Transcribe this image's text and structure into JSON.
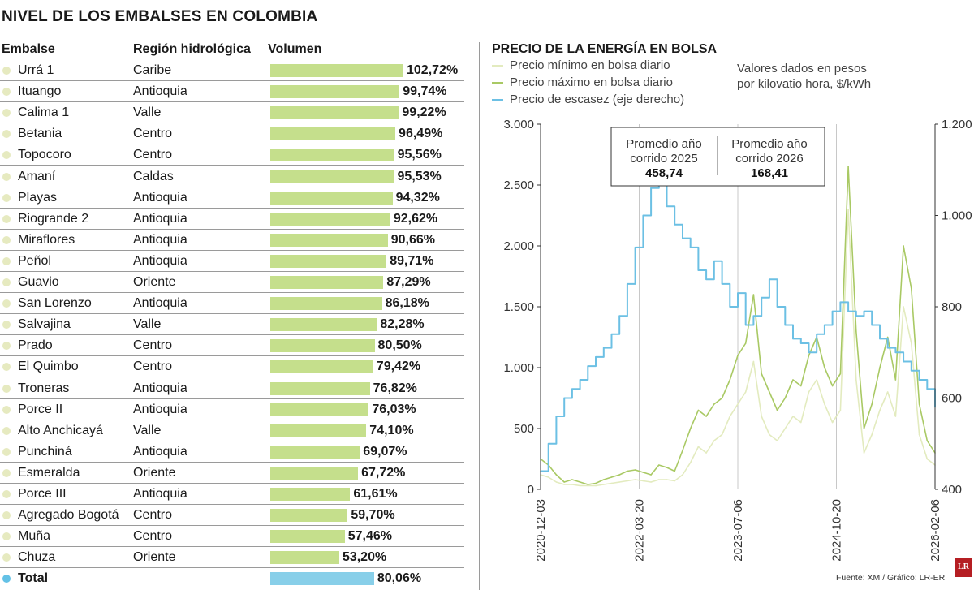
{
  "title": "NIVEL DE LOS EMBALSES EN COLOMBIA",
  "table": {
    "headers": {
      "name": "Embalse",
      "region": "Región hidrológica",
      "volume": "Volumen"
    },
    "rows": [
      {
        "name": "Urrá 1",
        "region": "Caribe",
        "value": 102.72,
        "label": "102,72%"
      },
      {
        "name": "Ituango",
        "region": "Antioquia",
        "value": 99.74,
        "label": "99,74%"
      },
      {
        "name": "Calima 1",
        "region": "Valle",
        "value": 99.22,
        "label": "99,22%"
      },
      {
        "name": "Betania",
        "region": "Centro",
        "value": 96.49,
        "label": "96,49%"
      },
      {
        "name": "Topocoro",
        "region": "Centro",
        "value": 95.56,
        "label": "95,56%"
      },
      {
        "name": "Amaní",
        "region": "Caldas",
        "value": 95.53,
        "label": "95,53%"
      },
      {
        "name": "Playas",
        "region": "Antioquia",
        "value": 94.32,
        "label": "94,32%"
      },
      {
        "name": "Riogrande 2",
        "region": "Antioquia",
        "value": 92.62,
        "label": "92,62%"
      },
      {
        "name": "Miraflores",
        "region": "Antioquia",
        "value": 90.66,
        "label": "90,66%"
      },
      {
        "name": "Peñol",
        "region": "Antioquia",
        "value": 89.71,
        "label": "89,71%"
      },
      {
        "name": "Guavio",
        "region": "Oriente",
        "value": 87.29,
        "label": "87,29%"
      },
      {
        "name": "San Lorenzo",
        "region": "Antioquia",
        "value": 86.18,
        "label": "86,18%"
      },
      {
        "name": "Salvajina",
        "region": "Valle",
        "value": 82.28,
        "label": "82,28%"
      },
      {
        "name": "Prado",
        "region": "Centro",
        "value": 80.5,
        "label": "80,50%"
      },
      {
        "name": "El Quimbo",
        "region": "Centro",
        "value": 79.42,
        "label": "79,42%"
      },
      {
        "name": "Troneras",
        "region": "Antioquia",
        "value": 76.82,
        "label": "76,82%"
      },
      {
        "name": "Porce II",
        "region": "Antioquia",
        "value": 76.03,
        "label": "76,03%"
      },
      {
        "name": "Alto Anchicayá",
        "region": "Valle",
        "value": 74.1,
        "label": "74,10%"
      },
      {
        "name": "Punchiná",
        "region": "Antioquia",
        "value": 69.07,
        "label": "69,07%"
      },
      {
        "name": "Esmeralda",
        "region": "Oriente",
        "value": 67.72,
        "label": "67,72%"
      },
      {
        "name": "Porce III",
        "region": "Antioquia",
        "value": 61.61,
        "label": "61,61%"
      },
      {
        "name": "Agregado Bogotá",
        "region": "Centro",
        "value": 59.7,
        "label": "59,70%"
      },
      {
        "name": "Muña",
        "region": "Centro",
        "value": 57.46,
        "label": "57,46%"
      },
      {
        "name": "Chuza",
        "region": "Oriente",
        "value": 53.2,
        "label": "53,20%"
      }
    ],
    "total": {
      "name": "Total",
      "region": "",
      "value": 80.06,
      "label": "80,06%"
    }
  },
  "chart": {
    "title": "PRECIO DE LA ENERGÍA EN BOLSA",
    "legend": [
      {
        "label": "Precio mínimo en bolsa diario",
        "color": "#e3ebbf"
      },
      {
        "label": "Precio máximo en bolsa diario",
        "color": "#a9c964"
      },
      {
        "label": "Precio de escasez (eje derecho)",
        "color": "#6cc0e4"
      }
    ],
    "units_line1": "Valores dados en pesos",
    "units_line2": "por kilovatio hora, $/kWh",
    "box": {
      "left_label1": "Promedio año",
      "left_label2": "corrido 2025",
      "left_value": "458,74",
      "right_label1": "Promedio año",
      "right_label2": "corrido 2026",
      "right_value": "168,41"
    }
  },
  "chart_data": [
    {
      "type": "bar",
      "title": "NIVEL DE LOS EMBALSES EN COLOMBIA",
      "categories": [
        "Urrá 1",
        "Ituango",
        "Calima 1",
        "Betania",
        "Topocoro",
        "Amaní",
        "Playas",
        "Riogrande 2",
        "Miraflores",
        "Peñol",
        "Guavio",
        "San Lorenzo",
        "Salvajina",
        "Prado",
        "El Quimbo",
        "Troneras",
        "Porce II",
        "Alto Anchicayá",
        "Punchiná",
        "Esmeralda",
        "Porce III",
        "Agregado Bogotá",
        "Muña",
        "Chuza",
        "Total"
      ],
      "values": [
        102.72,
        99.74,
        99.22,
        96.49,
        95.56,
        95.53,
        94.32,
        92.62,
        90.66,
        89.71,
        87.29,
        86.18,
        82.28,
        80.5,
        79.42,
        76.82,
        76.03,
        74.1,
        69.07,
        67.72,
        61.61,
        59.7,
        57.46,
        53.2,
        80.06
      ],
      "xlabel": "Volumen",
      "xlim": [
        0,
        102.72
      ]
    },
    {
      "type": "line",
      "title": "PRECIO DE LA ENERGÍA EN BOLSA",
      "x_start": "2020-12-03",
      "x_end": "2026-02-06",
      "x_ticks": [
        "2020-12-03",
        "2022-03-20",
        "2023-07-06",
        "2024-10-20",
        "2026-02-06"
      ],
      "ylim_left": [
        0,
        3000
      ],
      "y_ticks_left": [
        0,
        500,
        1000,
        1500,
        2000,
        2500,
        3000
      ],
      "y_tick_labels_left": [
        "0",
        "500",
        "1.000",
        "1.500",
        "2.000",
        "2.500",
        "3.000"
      ],
      "ylim_right": [
        400,
        1200
      ],
      "y_ticks_right": [
        400,
        600,
        800,
        1000,
        1200
      ],
      "y_tick_labels_right": [
        "400",
        "600",
        "800",
        "1.000",
        "1.200"
      ],
      "series": [
        {
          "name": "Precio de escasez (eje derecho)",
          "axis": "right",
          "x": [
            0,
            0.02,
            0.04,
            0.06,
            0.08,
            0.1,
            0.12,
            0.14,
            0.16,
            0.18,
            0.2,
            0.22,
            0.24,
            0.26,
            0.28,
            0.3,
            0.32,
            0.34,
            0.36,
            0.38,
            0.4,
            0.42,
            0.44,
            0.46,
            0.48,
            0.5,
            0.52,
            0.54,
            0.56,
            0.58,
            0.6,
            0.62,
            0.64,
            0.66,
            0.68,
            0.7,
            0.72,
            0.74,
            0.76,
            0.78,
            0.8,
            0.82,
            0.84,
            0.86,
            0.88,
            0.9,
            0.92,
            0.94,
            0.96,
            0.98,
            1.0
          ],
          "values": [
            440,
            500,
            560,
            600,
            620,
            640,
            670,
            690,
            710,
            740,
            780,
            850,
            930,
            1000,
            1060,
            1070,
            1020,
            980,
            950,
            930,
            880,
            860,
            900,
            850,
            800,
            830,
            760,
            780,
            820,
            860,
            800,
            760,
            730,
            720,
            700,
            740,
            760,
            790,
            810,
            790,
            780,
            790,
            760,
            730,
            710,
            700,
            680,
            660,
            640,
            620,
            580
          ]
        },
        {
          "name": "Precio máximo en bolsa diario",
          "axis": "left",
          "x": [
            0,
            0.02,
            0.04,
            0.06,
            0.08,
            0.1,
            0.12,
            0.14,
            0.16,
            0.18,
            0.2,
            0.22,
            0.24,
            0.26,
            0.28,
            0.3,
            0.32,
            0.34,
            0.36,
            0.38,
            0.4,
            0.42,
            0.44,
            0.46,
            0.48,
            0.5,
            0.52,
            0.54,
            0.56,
            0.58,
            0.6,
            0.62,
            0.64,
            0.66,
            0.68,
            0.7,
            0.72,
            0.74,
            0.76,
            0.78,
            0.8,
            0.82,
            0.84,
            0.86,
            0.88,
            0.9,
            0.92,
            0.94,
            0.96,
            0.98,
            1.0
          ],
          "values": [
            250,
            200,
            120,
            60,
            80,
            60,
            40,
            50,
            80,
            100,
            120,
            150,
            160,
            140,
            120,
            200,
            180,
            150,
            320,
            500,
            650,
            600,
            700,
            750,
            900,
            1100,
            1200,
            1600,
            950,
            800,
            650,
            750,
            900,
            850,
            1100,
            1250,
            1000,
            850,
            950,
            2650,
            1300,
            500,
            700,
            1000,
            1250,
            900,
            2000,
            1650,
            700,
            400,
            300
          ]
        },
        {
          "name": "Precio mínimo en bolsa diario",
          "axis": "left",
          "x": [
            0,
            0.02,
            0.04,
            0.06,
            0.08,
            0.1,
            0.12,
            0.14,
            0.16,
            0.18,
            0.2,
            0.22,
            0.24,
            0.26,
            0.28,
            0.3,
            0.32,
            0.34,
            0.36,
            0.38,
            0.4,
            0.42,
            0.44,
            0.46,
            0.48,
            0.5,
            0.52,
            0.54,
            0.56,
            0.58,
            0.6,
            0.62,
            0.64,
            0.66,
            0.68,
            0.7,
            0.72,
            0.74,
            0.76,
            0.78,
            0.8,
            0.82,
            0.84,
            0.86,
            0.88,
            0.9,
            0.92,
            0.94,
            0.96,
            0.98,
            1.0
          ],
          "values": [
            120,
            100,
            60,
            40,
            40,
            30,
            30,
            30,
            40,
            50,
            60,
            70,
            80,
            70,
            60,
            80,
            80,
            70,
            120,
            220,
            350,
            300,
            400,
            450,
            600,
            700,
            800,
            1050,
            600,
            450,
            400,
            500,
            600,
            550,
            800,
            900,
            700,
            550,
            650,
            2300,
            900,
            300,
            450,
            650,
            800,
            600,
            1500,
            1200,
            450,
            250,
            200
          ]
        }
      ]
    }
  ],
  "footer": {
    "source": "Fuente: XM / Gráfico: LR-ER",
    "logo": "LR"
  }
}
